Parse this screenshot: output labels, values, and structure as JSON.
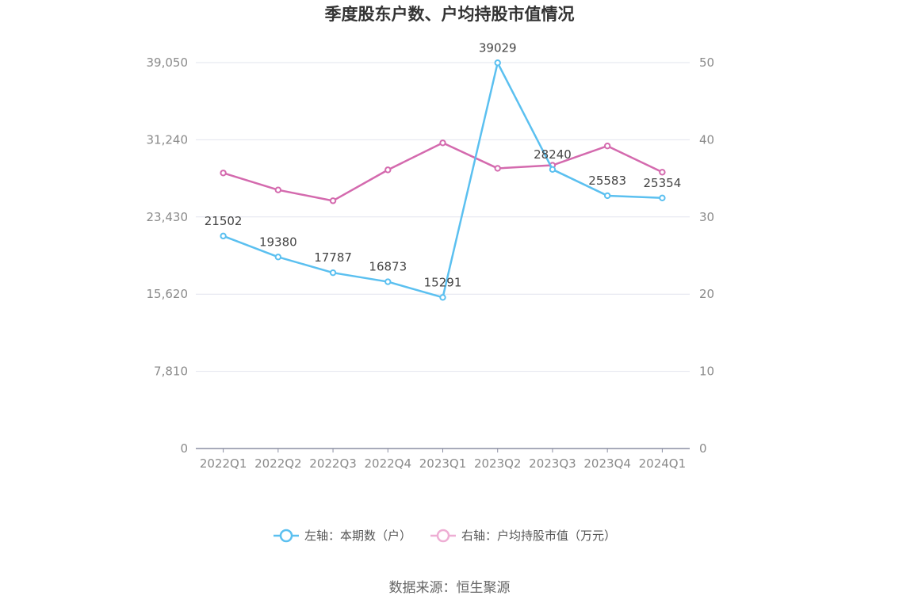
{
  "title": "季度股东户数、户均持股市值情况",
  "source": "数据来源：恒生聚源",
  "colors": {
    "left": "#5bc0f0",
    "right": "#d46aae",
    "right_legend": "#eeaed4",
    "grid": "#e2e4ee",
    "axis": "#8c8fa3"
  },
  "chart_data": {
    "type": "line",
    "categories": [
      "2022Q1",
      "2022Q2",
      "2022Q3",
      "2022Q4",
      "2023Q1",
      "2023Q2",
      "2023Q3",
      "2023Q4",
      "2024Q1"
    ],
    "y_left": {
      "ticks": [
        "0",
        "7,810",
        "15,620",
        "23,430",
        "31,240",
        "39,050"
      ],
      "ylim": [
        0,
        39050
      ]
    },
    "y_right": {
      "ticks": [
        "0",
        "10",
        "20",
        "30",
        "40",
        "50"
      ],
      "ylim": [
        0,
        50
      ]
    },
    "grid": true,
    "legend_position": "bottom",
    "series": [
      {
        "name": "左轴：本期数（户）",
        "axis": "left",
        "values": [
          21502,
          19380,
          17787,
          16873,
          15291,
          39029,
          28240,
          25583,
          25354
        ],
        "labels": [
          "21502",
          "19380",
          "17787",
          "16873",
          "15291",
          "39029",
          "28240",
          "25583",
          "25354"
        ]
      },
      {
        "name": "右轴：户均持股市值（万元）",
        "axis": "right",
        "values": [
          35.7,
          33.5,
          32.1,
          36.1,
          39.6,
          36.3,
          36.7,
          39.2,
          35.8
        ]
      }
    ]
  }
}
